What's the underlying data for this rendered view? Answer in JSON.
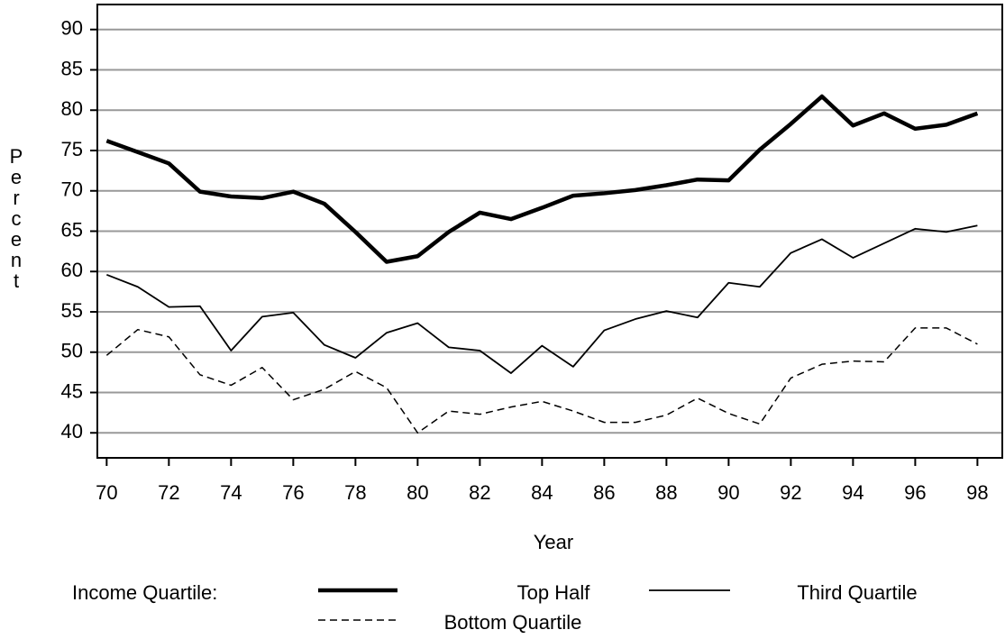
{
  "chart_data": {
    "type": "line",
    "x_label": "Year",
    "y_label": "Percent",
    "legend_title": "Income Quartile:",
    "x": [
      70,
      71,
      72,
      73,
      74,
      75,
      76,
      77,
      78,
      79,
      80,
      81,
      82,
      83,
      84,
      85,
      86,
      87,
      88,
      89,
      90,
      91,
      92,
      93,
      94,
      95,
      96,
      97,
      98
    ],
    "series": [
      {
        "name": "Top Half",
        "color": "#000000",
        "line_width": 4.5,
        "dash": "none",
        "values": [
          76.2,
          74.8,
          73.4,
          69.9,
          69.3,
          69.1,
          69.9,
          68.4,
          64.9,
          61.2,
          61.9,
          64.9,
          67.3,
          66.5,
          67.9,
          69.4,
          69.7,
          70.1,
          70.7,
          71.4,
          71.3,
          75.1,
          78.3,
          81.7,
          78.1,
          79.6,
          77.7,
          78.2,
          79.6
        ]
      },
      {
        "name": "Third Quartile",
        "color": "#000000",
        "line_width": 1.8,
        "dash": "none",
        "values": [
          59.6,
          58.1,
          55.6,
          55.7,
          50.2,
          54.4,
          54.9,
          50.9,
          49.3,
          52.4,
          53.6,
          50.6,
          50.2,
          47.4,
          50.8,
          48.2,
          52.7,
          54.1,
          55.1,
          54.3,
          58.6,
          58.1,
          62.3,
          64.0,
          61.7,
          63.5,
          65.3,
          64.9,
          65.7
        ]
      },
      {
        "name": "Bottom Quartile",
        "color": "#000000",
        "line_width": 1.5,
        "dash": "8 5",
        "values": [
          49.6,
          52.8,
          51.9,
          47.2,
          45.9,
          48.1,
          44.1,
          45.4,
          47.6,
          45.6,
          40.0,
          42.7,
          42.3,
          43.2,
          43.9,
          42.7,
          41.3,
          41.3,
          42.2,
          44.3,
          42.4,
          41.1,
          46.8,
          48.5,
          48.9,
          48.8,
          53.0,
          53.0,
          51.0
        ]
      }
    ],
    "xlim": [
      69.7,
      98.8
    ],
    "xticks": [
      70,
      72,
      74,
      76,
      78,
      80,
      82,
      84,
      86,
      88,
      90,
      92,
      94,
      96,
      98
    ],
    "ylim": [
      36.9,
      93.1
    ],
    "yticks": [
      40,
      45,
      50,
      55,
      60,
      65,
      70,
      75,
      80,
      85,
      90
    ],
    "grid": true,
    "grid_color": "#999999"
  }
}
